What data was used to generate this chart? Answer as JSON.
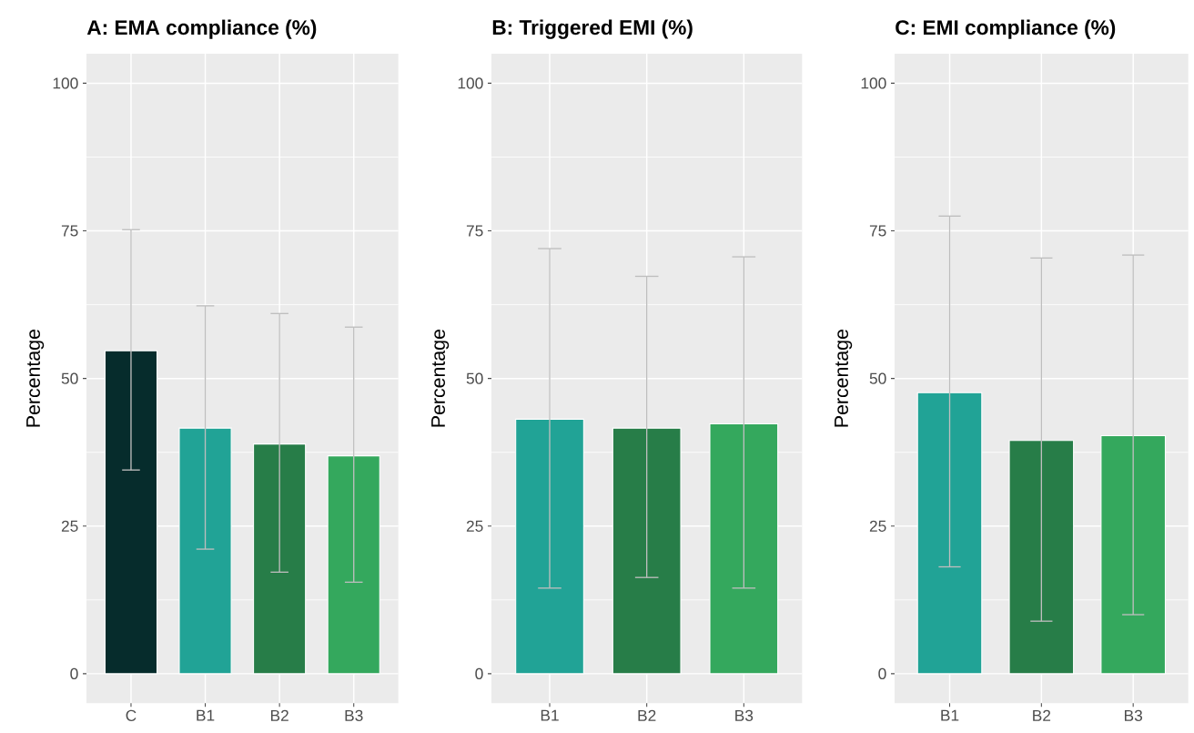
{
  "chart_data": [
    {
      "type": "bar",
      "title": "A: EMA compliance (%)",
      "ylabel": "Percentage",
      "categories": [
        "C",
        "B1",
        "B2",
        "B3"
      ],
      "values": [
        54.7,
        41.6,
        38.9,
        36.9
      ],
      "colors": [
        "#062c2c",
        "#21a396",
        "#277d48",
        "#34a85d"
      ],
      "errors": [
        [
          34.5,
          75.2
        ],
        [
          21.1,
          62.3
        ],
        [
          17.2,
          61.0
        ],
        [
          15.5,
          58.7
        ]
      ],
      "ylim": [
        -5,
        105
      ],
      "yticks": [
        0,
        25,
        50,
        75,
        100
      ],
      "grid": true
    },
    {
      "type": "bar",
      "title": "B: Triggered EMI (%)",
      "ylabel": "Percentage",
      "categories": [
        "B1",
        "B2",
        "B3"
      ],
      "values": [
        43.1,
        41.6,
        42.3
      ],
      "colors": [
        "#21a396",
        "#277d48",
        "#34a85d"
      ],
      "errors": [
        [
          14.5,
          72.0
        ],
        [
          16.3,
          67.3
        ],
        [
          14.5,
          70.6
        ]
      ],
      "ylim": [
        -5,
        105
      ],
      "yticks": [
        0,
        25,
        50,
        75,
        100
      ],
      "grid": true
    },
    {
      "type": "bar",
      "title": "C: EMI compliance (%)",
      "ylabel": "Percentage",
      "categories": [
        "B1",
        "B2",
        "B3"
      ],
      "values": [
        47.6,
        39.5,
        40.3
      ],
      "colors": [
        "#21a396",
        "#277d48",
        "#34a85d"
      ],
      "errors": [
        [
          18.1,
          77.5
        ],
        [
          8.9,
          70.4
        ],
        [
          10.0,
          70.9
        ]
      ],
      "ylim": [
        -5,
        105
      ],
      "yticks": [
        0,
        25,
        50,
        75,
        100
      ],
      "grid": true
    }
  ]
}
